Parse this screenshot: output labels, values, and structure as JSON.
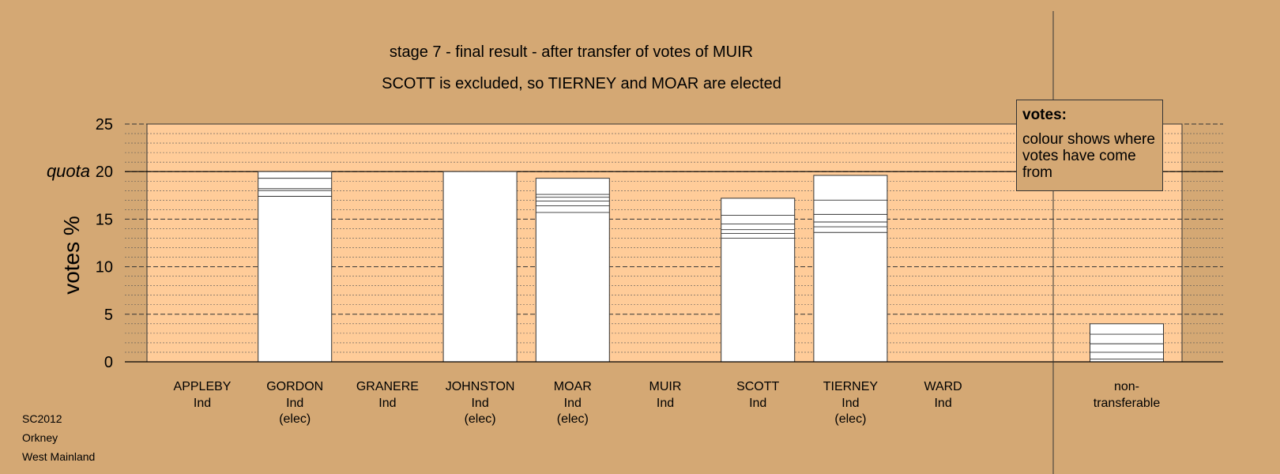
{
  "chart_data": {
    "type": "bar",
    "stacked": true,
    "title": "stage 7 - final result - after transfer of votes of MUIR",
    "subtitle": "SCOTT is excluded, so TIERNEY and MOAR are elected",
    "ylabel": "votes %",
    "ylim": [
      0,
      25
    ],
    "yticks": [
      0,
      5,
      10,
      15,
      20,
      25
    ],
    "grid": true,
    "quota": {
      "label": "quota",
      "value": 20
    },
    "categories": [
      {
        "name": "APPLEBY",
        "party": "Ind",
        "status": ""
      },
      {
        "name": "GORDON",
        "party": "Ind",
        "status": "(elec)"
      },
      {
        "name": "GRANERE",
        "party": "Ind",
        "status": ""
      },
      {
        "name": "JOHNSTON",
        "party": "Ind",
        "status": "(elec)"
      },
      {
        "name": "MOAR",
        "party": "Ind",
        "status": "(elec)"
      },
      {
        "name": "MUIR",
        "party": "Ind",
        "status": ""
      },
      {
        "name": "SCOTT",
        "party": "Ind",
        "status": ""
      },
      {
        "name": "TIERNEY",
        "party": "Ind",
        "status": "(elec)"
      },
      {
        "name": "WARD",
        "party": "Ind",
        "status": ""
      }
    ],
    "values": [
      0,
      20.0,
      0,
      20.0,
      19.3,
      0,
      17.2,
      19.6,
      0
    ],
    "segment_boundaries": [
      [],
      [
        17.4,
        18.0,
        18.2,
        19.3
      ],
      [],
      [],
      [
        15.7,
        16.4,
        16.9,
        17.3,
        17.6
      ],
      [],
      [
        13.0,
        13.5,
        13.9,
        14.5,
        15.4
      ],
      [
        13.6,
        14.2,
        14.7,
        15.5,
        17.0
      ],
      []
    ],
    "nontransferable": {
      "label_line1": "non-",
      "label_line2": "transferable",
      "value": 4.0,
      "segment_boundaries": [
        0.3,
        1.0,
        1.9,
        2.9
      ]
    },
    "legend": {
      "title": "votes:",
      "text": "colour shows where votes have come from",
      "placement": "top-right"
    },
    "colors": {
      "background": "#d4a874",
      "plot_area": "#ffcc99",
      "bar": "#ffffff",
      "outline": "#333333"
    }
  },
  "footer": {
    "line1": "SC2012",
    "line2": "Orkney",
    "line3": "West Mainland"
  }
}
